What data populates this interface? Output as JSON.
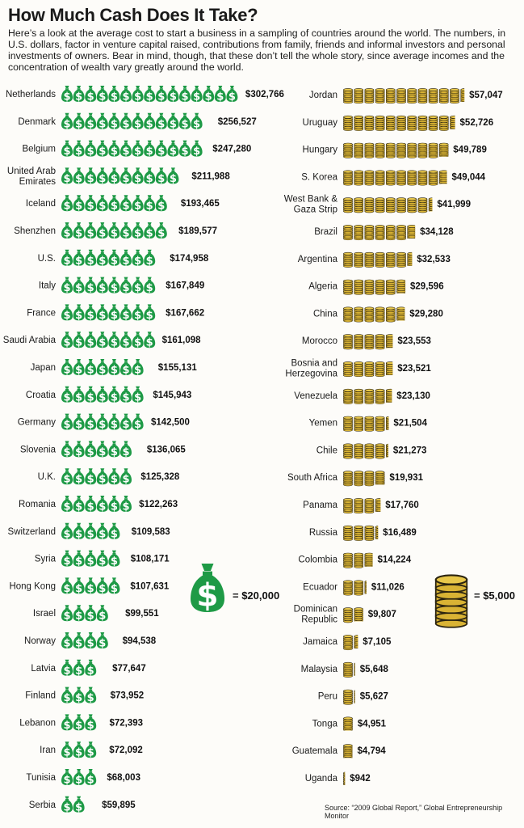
{
  "title": "How Much Cash Does It Take?",
  "intro": "Here’s a look at the average cost to start a business in a sampling of countries around the world. The numbers, in U.S. dollars, factor in venture capital raised, contributions from family, friends and informal investors and personal investments of owners. Bear in mind, though, that these don’t tell the whole story, since average incomes and the concentration of wealth vary greatly around the world.",
  "source": "Source: “2009 Global Report,” Global Entrepreneurship Monitor",
  "colors": {
    "money_bag": "#1e9a46",
    "coin": "#d9b334",
    "coin_edge": "#2b2410"
  },
  "icons": {
    "bag": "money-bag-icon",
    "coin": "coin-stack-icon"
  },
  "chart_data": [
    {
      "type": "bar",
      "unit_icon": "money-bag-icon",
      "unit_value": 20000,
      "legend_label": "= $20,000",
      "series": [
        {
          "label": "Netherlands",
          "value": 302766,
          "display": "$302,766"
        },
        {
          "label": "Denmark",
          "value": 256527,
          "display": "$256,527"
        },
        {
          "label": "Belgium",
          "value": 247280,
          "display": "$247,280"
        },
        {
          "label": "United Arab Emirates",
          "value": 211988,
          "display": "$211,988"
        },
        {
          "label": "Iceland",
          "value": 193465,
          "display": "$193,465"
        },
        {
          "label": "Shenzhen",
          "value": 189577,
          "display": "$189,577"
        },
        {
          "label": "U.S.",
          "value": 174958,
          "display": "$174,958"
        },
        {
          "label": "Italy",
          "value": 167849,
          "display": "$167,849"
        },
        {
          "label": "France",
          "value": 167662,
          "display": "$167,662"
        },
        {
          "label": "Saudi Arabia",
          "value": 161098,
          "display": "$161,098"
        },
        {
          "label": "Japan",
          "value": 155131,
          "display": "$155,131"
        },
        {
          "label": "Croatia",
          "value": 145943,
          "display": "$145,943"
        },
        {
          "label": "Germany",
          "value": 142500,
          "display": "$142,500"
        },
        {
          "label": "Slovenia",
          "value": 136065,
          "display": "$136,065"
        },
        {
          "label": "U.K.",
          "value": 125328,
          "display": "$125,328"
        },
        {
          "label": "Romania",
          "value": 122263,
          "display": "$122,263"
        },
        {
          "label": "Switzerland",
          "value": 109583,
          "display": "$109,583"
        },
        {
          "label": "Syria",
          "value": 108171,
          "display": "$108,171"
        },
        {
          "label": "Hong Kong",
          "value": 107631,
          "display": "$107,631"
        },
        {
          "label": "Israel",
          "value": 99551,
          "display": "$99,551"
        },
        {
          "label": "Norway",
          "value": 94538,
          "display": "$94,538"
        },
        {
          "label": "Latvia",
          "value": 77647,
          "display": "$77,647"
        },
        {
          "label": "Finland",
          "value": 73952,
          "display": "$73,952"
        },
        {
          "label": "Lebanon",
          "value": 72393,
          "display": "$72,393"
        },
        {
          "label": "Iran",
          "value": 72092,
          "display": "$72,092"
        },
        {
          "label": "Tunisia",
          "value": 68003,
          "display": "$68,003"
        },
        {
          "label": "Serbia",
          "value": 59895,
          "display": "$59,895"
        }
      ]
    },
    {
      "type": "bar",
      "unit_icon": "coin-stack-icon",
      "unit_value": 5000,
      "legend_label": "= $5,000",
      "series": [
        {
          "label": "Jordan",
          "value": 57047,
          "display": "$57,047"
        },
        {
          "label": "Uruguay",
          "value": 52726,
          "display": "$52,726"
        },
        {
          "label": "Hungary",
          "value": 49789,
          "display": "$49,789"
        },
        {
          "label": "S. Korea",
          "value": 49044,
          "display": "$49,044"
        },
        {
          "label": "West Bank & Gaza Strip",
          "value": 41999,
          "display": "$41,999"
        },
        {
          "label": "Brazil",
          "value": 34128,
          "display": "$34,128"
        },
        {
          "label": "Argentina",
          "value": 32533,
          "display": "$32,533"
        },
        {
          "label": "Algeria",
          "value": 29596,
          "display": "$29,596"
        },
        {
          "label": "China",
          "value": 29280,
          "display": "$29,280"
        },
        {
          "label": "Morocco",
          "value": 23553,
          "display": "$23,553"
        },
        {
          "label": "Bosnia and Herzegovina",
          "value": 23521,
          "display": "$23,521"
        },
        {
          "label": "Venezuela",
          "value": 23130,
          "display": "$23,130"
        },
        {
          "label": "Yemen",
          "value": 21504,
          "display": "$21,504"
        },
        {
          "label": "Chile",
          "value": 21273,
          "display": "$21,273"
        },
        {
          "label": "South Africa",
          "value": 19931,
          "display": "$19,931"
        },
        {
          "label": "Panama",
          "value": 17760,
          "display": "$17,760"
        },
        {
          "label": "Russia",
          "value": 16489,
          "display": "$16,489"
        },
        {
          "label": "Colombia",
          "value": 14224,
          "display": "$14,224"
        },
        {
          "label": "Ecuador",
          "value": 11026,
          "display": "$11,026"
        },
        {
          "label": "Dominican Republic",
          "value": 9807,
          "display": "$9,807"
        },
        {
          "label": "Jamaica",
          "value": 7105,
          "display": "$7,105"
        },
        {
          "label": "Malaysia",
          "value": 5648,
          "display": "$5,648"
        },
        {
          "label": "Peru",
          "value": 5627,
          "display": "$5,627"
        },
        {
          "label": "Tonga",
          "value": 4951,
          "display": "$4,951"
        },
        {
          "label": "Guatemala",
          "value": 4794,
          "display": "$4,794"
        },
        {
          "label": "Uganda",
          "value": 942,
          "display": "$942"
        }
      ]
    }
  ]
}
